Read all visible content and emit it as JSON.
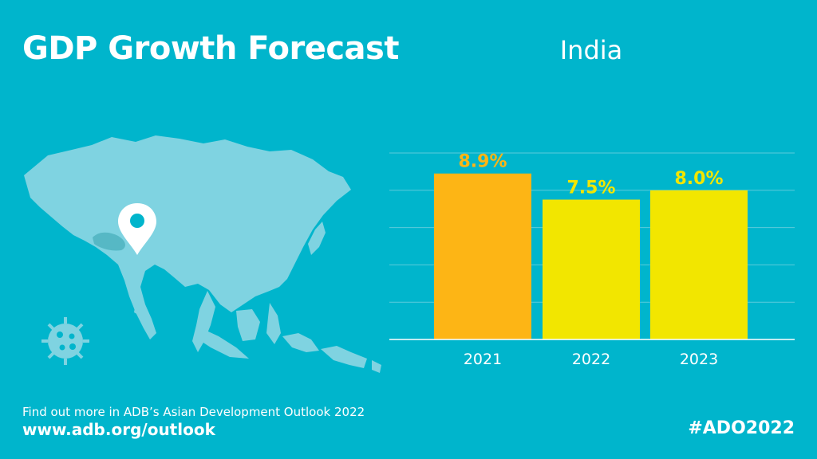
{
  "header": {
    "title": "GDP Growth Forecast",
    "country": "India"
  },
  "footer": {
    "line": "Find out more in ADB’s Asian Development Outlook 2022",
    "url": "www.adb.org/outlook",
    "hashtag": "#ADO2022"
  },
  "colors": {
    "background": "#00b5cc",
    "bar_actual": "#fdb515",
    "bar_forecast": "#f2e600",
    "map_land": "#7fd3e1",
    "pin": "#ffffff",
    "pin_dot": "#00b5cc",
    "gridline": "#5ccbdb",
    "virus": "#7fd3e1"
  },
  "icons": {
    "map": "asia-map-icon",
    "pin": "location-pin-icon",
    "virus": "virus-icon"
  },
  "chart_data": {
    "type": "bar",
    "title": "India",
    "categories": [
      "2021",
      "2022",
      "2023"
    ],
    "values": [
      8.9,
      7.5,
      8.0
    ],
    "value_labels": [
      "8.9%",
      "7.5%",
      "8.0%"
    ],
    "bar_colors": [
      "#fdb515",
      "#f2e600",
      "#f2e600"
    ],
    "label_colors": [
      "#fdb515",
      "#f2e600",
      "#f2e600"
    ],
    "xlabel": "",
    "ylabel": "",
    "ylim": [
      0,
      10
    ],
    "grid": true
  }
}
